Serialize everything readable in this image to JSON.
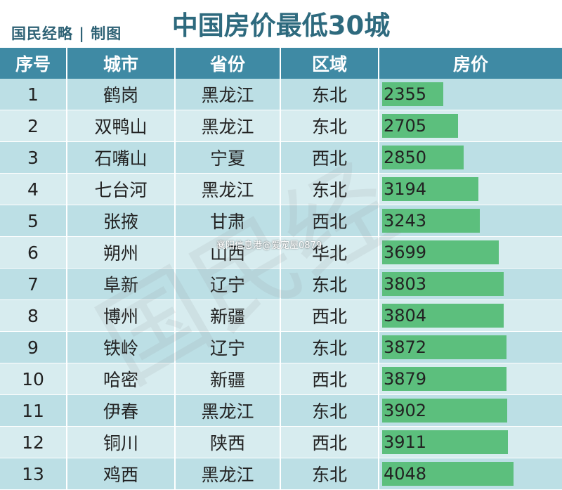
{
  "brand": "国民经略 | 制图",
  "title": "中国房价最低30城",
  "credit": "襄阳信息港@爱宠屋0879",
  "watermark": "国民经",
  "colors": {
    "header": "#3f8aa4",
    "bar": "#5cbf7d",
    "title": "#2e6a7e"
  },
  "chart_data": {
    "type": "table",
    "columns": [
      "序号",
      "城市",
      "省份",
      "区域",
      "房价"
    ],
    "rows": [
      {
        "rank": "1",
        "city": "鹤岗",
        "province": "黑龙江",
        "region": "东北",
        "price": 2355
      },
      {
        "rank": "2",
        "city": "双鸭山",
        "province": "黑龙江",
        "region": "东北",
        "price": 2705
      },
      {
        "rank": "3",
        "city": "石嘴山",
        "province": "宁夏",
        "region": "西北",
        "price": 2850
      },
      {
        "rank": "4",
        "city": "七台河",
        "province": "黑龙江",
        "region": "东北",
        "price": 3194
      },
      {
        "rank": "5",
        "city": "张掖",
        "province": "甘肃",
        "region": "西北",
        "price": 3243
      },
      {
        "rank": "6",
        "city": "朔州",
        "province": "山西",
        "region": "华北",
        "price": 3699
      },
      {
        "rank": "7",
        "city": "阜新",
        "province": "辽宁",
        "region": "东北",
        "price": 3803
      },
      {
        "rank": "8",
        "city": "博州",
        "province": "新疆",
        "region": "西北",
        "price": 3804
      },
      {
        "rank": "9",
        "city": "铁岭",
        "province": "辽宁",
        "region": "东北",
        "price": 3872
      },
      {
        "rank": "10",
        "city": "哈密",
        "province": "新疆",
        "region": "西北",
        "price": 3879
      },
      {
        "rank": "11",
        "city": "伊春",
        "province": "黑龙江",
        "region": "东北",
        "price": 3902
      },
      {
        "rank": "12",
        "city": "铜川",
        "province": "陕西",
        "region": "西北",
        "price": 3911
      },
      {
        "rank": "13",
        "city": "鸡西",
        "province": "黑龙江",
        "region": "东北",
        "price": 4048
      }
    ]
  }
}
